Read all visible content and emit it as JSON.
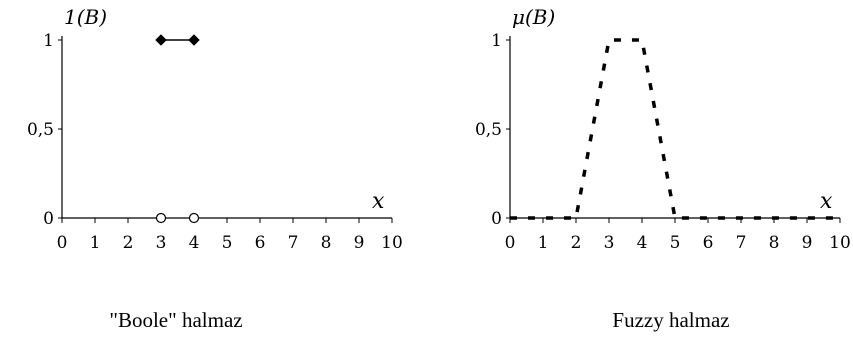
{
  "chart_data": [
    {
      "type": "line",
      "title": "",
      "ylabel": "1(B)",
      "xlabel": "x",
      "caption": "\"Boole\" halmaz",
      "xlim": [
        0,
        10
      ],
      "ylim": [
        0,
        1
      ],
      "x_ticks": [
        "0",
        "1",
        "2",
        "3",
        "4",
        "5",
        "6",
        "7",
        "8",
        "9",
        "10"
      ],
      "y_ticks": [
        {
          "value": 0,
          "label": "0"
        },
        {
          "value": 0.5,
          "label": "0,5"
        },
        {
          "value": 1,
          "label": "1"
        }
      ],
      "series": [
        {
          "style": "solid",
          "marker": "filled-diamond",
          "points": [
            [
              3,
              1
            ],
            [
              4,
              1
            ]
          ]
        },
        {
          "style": "axis",
          "marker": "open-circle",
          "points": [
            [
              3,
              0
            ],
            [
              4,
              0
            ]
          ]
        }
      ]
    },
    {
      "type": "line",
      "title": "",
      "ylabel": "μ(B)",
      "xlabel": "x",
      "caption": "Fuzzy halmaz",
      "xlim": [
        0,
        10
      ],
      "ylim": [
        0,
        1
      ],
      "x_ticks": [
        "0",
        "1",
        "2",
        "3",
        "4",
        "5",
        "6",
        "7",
        "8",
        "9",
        "10"
      ],
      "y_ticks": [
        {
          "value": 0,
          "label": "0"
        },
        {
          "value": 0.5,
          "label": "0,5"
        },
        {
          "value": 1,
          "label": "1"
        }
      ],
      "series": [
        {
          "style": "dashed",
          "marker": "none",
          "points": [
            [
              0,
              0
            ],
            [
              2,
              0
            ],
            [
              3,
              1
            ],
            [
              4,
              1
            ],
            [
              5,
              0
            ],
            [
              10,
              0
            ]
          ]
        }
      ]
    }
  ]
}
